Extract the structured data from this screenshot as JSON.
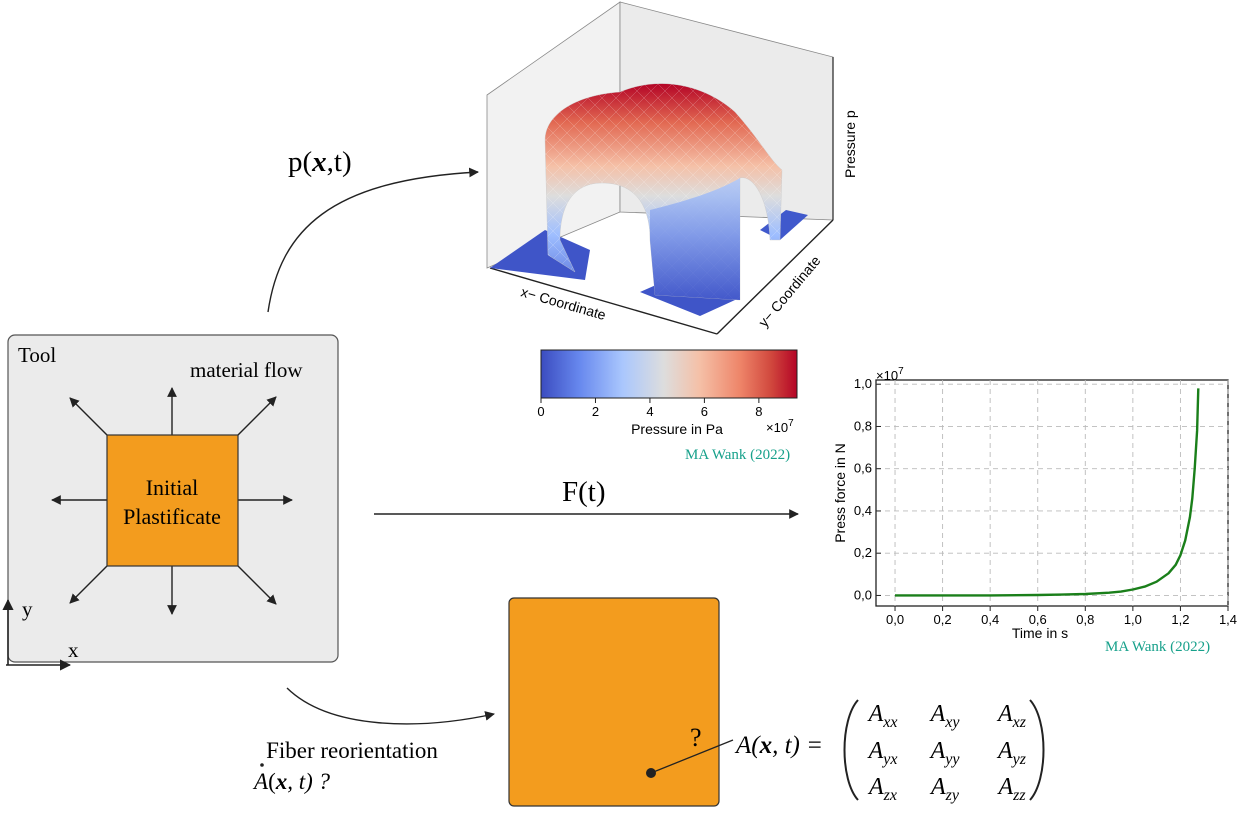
{
  "tool": {
    "title": "Tool",
    "flow_label": "material flow",
    "plastificate_line1": "Initial",
    "plastificate_line2": "Plastificate",
    "axis_y": "y",
    "axis_x": "x"
  },
  "arrows": {
    "pressure_label_pre": "p(",
    "pressure_label_bold": "x",
    "pressure_label_post": ",t)",
    "force_label": "F(t)",
    "fiber_label": "Fiber reorientation"
  },
  "surface_plot": {
    "xlabel": "x− Coordinate",
    "ylabel": "y− Coordinate",
    "zlabel": "Pressure p"
  },
  "colorbar": {
    "ticks": [
      "0",
      "2",
      "4",
      "6",
      "8"
    ],
    "label": "Pressure in Pa",
    "exponent": "×10",
    "exponent_sup": "7",
    "credit": "MA Wank (2022)",
    "colors": [
      "#3b4cc0",
      "#7396f5",
      "#b0cbfc",
      "#dddddd",
      "#f6bfa6",
      "#f08a6c",
      "#cc3a35",
      "#b40426"
    ]
  },
  "chart_data": {
    "type": "line",
    "title": "",
    "xlabel": "Time in s",
    "ylabel": "Press force in N",
    "y_exponent": "×10",
    "y_exponent_sup": "7",
    "xlim": [
      -0.08,
      1.4
    ],
    "ylim": [
      -0.05,
      1.02
    ],
    "x_ticks": [
      "0,0",
      "0,2",
      "0,4",
      "0,6",
      "0,8",
      "1,0",
      "1,2",
      "1,4"
    ],
    "y_ticks": [
      "0,0",
      "0,2",
      "0,4",
      "0,6",
      "0,8",
      "1,0"
    ],
    "grid": true,
    "line_color": "#1a7f1a",
    "series": [
      {
        "x": [
          0.0,
          0.2,
          0.4,
          0.6,
          0.7,
          0.8,
          0.9,
          0.95,
          1.0,
          1.05,
          1.1,
          1.15,
          1.18,
          1.2,
          1.22,
          1.24,
          1.25,
          1.26,
          1.27,
          1.275
        ],
        "y": [
          0.0,
          0.0,
          0.0,
          0.002,
          0.004,
          0.007,
          0.013,
          0.018,
          0.028,
          0.042,
          0.065,
          0.105,
          0.145,
          0.19,
          0.26,
          0.37,
          0.46,
          0.6,
          0.78,
          0.98
        ]
      }
    ],
    "credit": "MA Wank (2022)"
  },
  "matrix": {
    "lhs_pre": "A(",
    "lhs_bold": "x",
    "lhs_post": ", t) =",
    "rows": [
      [
        {
          "b": "A",
          "s": "xx"
        },
        {
          "b": "A",
          "s": "xy"
        },
        {
          "b": "A",
          "s": "xz"
        }
      ],
      [
        {
          "b": "A",
          "s": "yx"
        },
        {
          "b": "A",
          "s": "yy"
        },
        {
          "b": "A",
          "s": "yz"
        }
      ],
      [
        {
          "b": "A",
          "s": "zx"
        },
        {
          "b": "A",
          "s": "zy"
        },
        {
          "b": "A",
          "s": "zz"
        }
      ]
    ]
  },
  "fiber": {
    "rate_pre": "(",
    "rate_bold": "x",
    "rate_post": ", t) ?",
    "rate_symbol": "A",
    "question": "?"
  },
  "colors": {
    "orange": "#f39c1e",
    "tool_bg": "#ebebeb",
    "credit": "#17a18b",
    "plot_line": "#1a7f1a"
  }
}
